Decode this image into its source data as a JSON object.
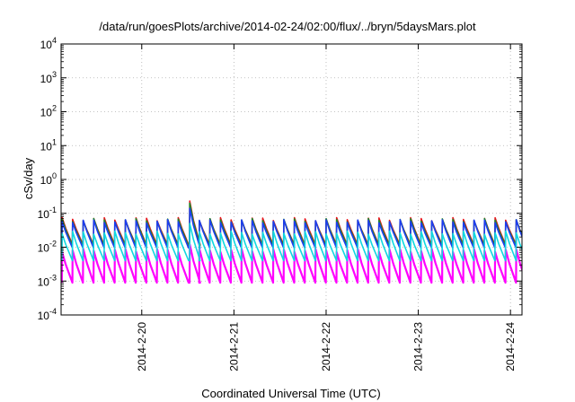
{
  "chart_data": {
    "type": "line",
    "title": "/data/run/goesPlots/archive/2014-02-24/02:00/flux/../bryn/5daysMars.plot",
    "xlabel": "Coordinated Universal Time (UTC)",
    "ylabel": "cSv/day",
    "yscale": "log",
    "ylim": [
      0.0001,
      10000
    ],
    "xlim": [
      "2014-02-19T03:00",
      "2014-02-24T03:00"
    ],
    "y_ticks": [
      {
        "base": "10",
        "exp": "-4"
      },
      {
        "base": "10",
        "exp": "-3"
      },
      {
        "base": "10",
        "exp": "-2"
      },
      {
        "base": "10",
        "exp": "-1"
      },
      {
        "base": "10",
        "exp": "0"
      },
      {
        "base": "10",
        "exp": "1"
      },
      {
        "base": "10",
        "exp": "2"
      },
      {
        "base": "10",
        "exp": "3"
      },
      {
        "base": "10",
        "exp": "4"
      }
    ],
    "x_ticks": [
      {
        "label": "2014-2-20",
        "date": "2014-02-20T00:00"
      },
      {
        "label": "2014-2-21",
        "date": "2014-02-21T00:00"
      },
      {
        "label": "2014-2-22",
        "date": "2014-02-22T00:00"
      },
      {
        "label": "2014-2-23",
        "date": "2014-02-23T00:00"
      },
      {
        "label": "2014-2-24",
        "date": "2014-02-24T00:00"
      }
    ],
    "grid": true,
    "legend": "none",
    "pattern": {
      "description_values": "sawtooth cycles, one every ~2.75 hours",
      "cycle_hours": 2.75,
      "first_peak": "2014-02-19T03:15",
      "spike_peak": "2014-02-20T12:30"
    },
    "series": [
      {
        "color": "#e8141b",
        "peak": 0.075,
        "trough": 0.012,
        "spike_peak": 0.23
      },
      {
        "color": "#1a8a2a",
        "peak": 0.07,
        "trough": 0.011,
        "spike_peak": 0.2
      },
      {
        "color": "#1d3cf0",
        "peak": 0.065,
        "trough": 0.0095,
        "spike_peak": 0.14
      },
      {
        "color": "#ff00ff",
        "peak": 0.009,
        "trough": 0.0009,
        "spike_peak": 0.012
      },
      {
        "color": "#10d8e0",
        "peak": 0.03,
        "trough": 0.004,
        "spike_peak": 0.05
      }
    ]
  }
}
